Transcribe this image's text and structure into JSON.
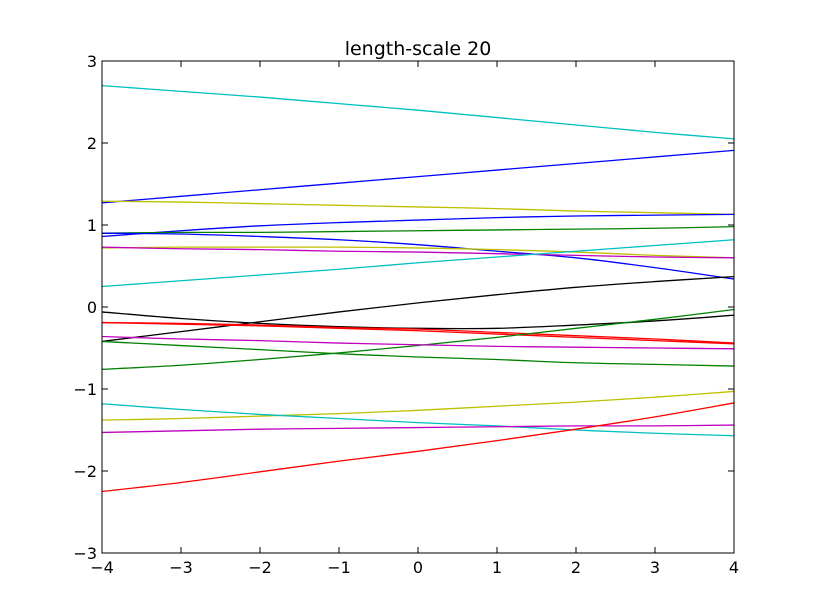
{
  "chart_data": {
    "type": "line",
    "title": "length-scale 20",
    "xlabel": "",
    "ylabel": "",
    "xlim": [
      -4,
      4
    ],
    "ylim": [
      -3,
      3
    ],
    "x_ticks": [
      -4,
      -3,
      -2,
      -1,
      0,
      1,
      2,
      3,
      4
    ],
    "y_ticks": [
      -3,
      -2,
      -1,
      0,
      1,
      2,
      3
    ],
    "x_tick_labels": [
      "−4",
      "−3",
      "−2",
      "−1",
      "0",
      "1",
      "2",
      "3",
      "4"
    ],
    "y_tick_labels": [
      "−3",
      "−2",
      "−1",
      "0",
      "1",
      "2",
      "3"
    ],
    "grid": false,
    "x": [
      -4,
      -3,
      -2,
      -1,
      0,
      1,
      2,
      3,
      4
    ],
    "series": [
      {
        "color": "#00bfbf",
        "values": [
          2.7,
          2.63,
          2.56,
          2.48,
          2.4,
          2.31,
          2.22,
          2.13,
          2.05
        ]
      },
      {
        "color": "#0000ff",
        "values": [
          1.27,
          1.35,
          1.43,
          1.51,
          1.59,
          1.67,
          1.75,
          1.83,
          1.91
        ]
      },
      {
        "color": "#bfbf00",
        "values": [
          1.29,
          1.28,
          1.26,
          1.24,
          1.22,
          1.2,
          1.17,
          1.15,
          1.13
        ]
      },
      {
        "color": "#0000ff",
        "values": [
          0.86,
          0.93,
          0.99,
          1.03,
          1.06,
          1.09,
          1.11,
          1.12,
          1.13
        ]
      },
      {
        "color": "#008000",
        "values": [
          0.9,
          0.91,
          0.91,
          0.92,
          0.93,
          0.94,
          0.95,
          0.96,
          0.98
        ]
      },
      {
        "color": "#0000ff",
        "values": [
          0.9,
          0.89,
          0.86,
          0.82,
          0.76,
          0.68,
          0.6,
          0.48,
          0.34
        ]
      },
      {
        "color": "#bfbf00",
        "values": [
          0.72,
          0.73,
          0.73,
          0.73,
          0.72,
          0.7,
          0.67,
          0.63,
          0.6
        ]
      },
      {
        "color": "#bf00bf",
        "values": [
          0.73,
          0.71,
          0.7,
          0.68,
          0.67,
          0.65,
          0.63,
          0.61,
          0.6
        ]
      },
      {
        "color": "#00bfbf",
        "values": [
          0.25,
          0.32,
          0.39,
          0.46,
          0.54,
          0.61,
          0.68,
          0.75,
          0.82
        ]
      },
      {
        "color": "#000000",
        "values": [
          -0.42,
          -0.3,
          -0.18,
          -0.06,
          0.05,
          0.15,
          0.24,
          0.31,
          0.37
        ]
      },
      {
        "color": "#000000",
        "values": [
          -0.06,
          -0.14,
          -0.2,
          -0.24,
          -0.26,
          -0.26,
          -0.22,
          -0.17,
          -0.1
        ]
      },
      {
        "color": "#ff0000",
        "values": [
          -0.19,
          -0.2,
          -0.22,
          -0.25,
          -0.27,
          -0.31,
          -0.35,
          -0.39,
          -0.44
        ]
      },
      {
        "color": "#ff0000",
        "values": [
          -0.19,
          -0.21,
          -0.23,
          -0.26,
          -0.29,
          -0.33,
          -0.37,
          -0.41,
          -0.45
        ]
      },
      {
        "color": "#008000",
        "values": [
          -0.76,
          -0.71,
          -0.64,
          -0.56,
          -0.47,
          -0.37,
          -0.26,
          -0.15,
          -0.03
        ]
      },
      {
        "color": "#bf00bf",
        "values": [
          -0.36,
          -0.39,
          -0.41,
          -0.44,
          -0.46,
          -0.48,
          -0.49,
          -0.5,
          -0.51
        ]
      },
      {
        "color": "#008000",
        "values": [
          -0.42,
          -0.47,
          -0.52,
          -0.57,
          -0.61,
          -0.64,
          -0.68,
          -0.7,
          -0.72
        ]
      },
      {
        "color": "#bfbf00",
        "values": [
          -1.38,
          -1.36,
          -1.33,
          -1.3,
          -1.26,
          -1.21,
          -1.16,
          -1.1,
          -1.03
        ]
      },
      {
        "color": "#00bfbf",
        "values": [
          -1.18,
          -1.25,
          -1.31,
          -1.36,
          -1.41,
          -1.45,
          -1.5,
          -1.54,
          -1.57
        ]
      },
      {
        "color": "#bf00bf",
        "values": [
          -1.53,
          -1.51,
          -1.49,
          -1.48,
          -1.47,
          -1.46,
          -1.45,
          -1.45,
          -1.44
        ]
      },
      {
        "color": "#ff0000",
        "values": [
          -2.25,
          -2.14,
          -2.01,
          -1.88,
          -1.76,
          -1.63,
          -1.49,
          -1.34,
          -1.17
        ]
      }
    ]
  }
}
